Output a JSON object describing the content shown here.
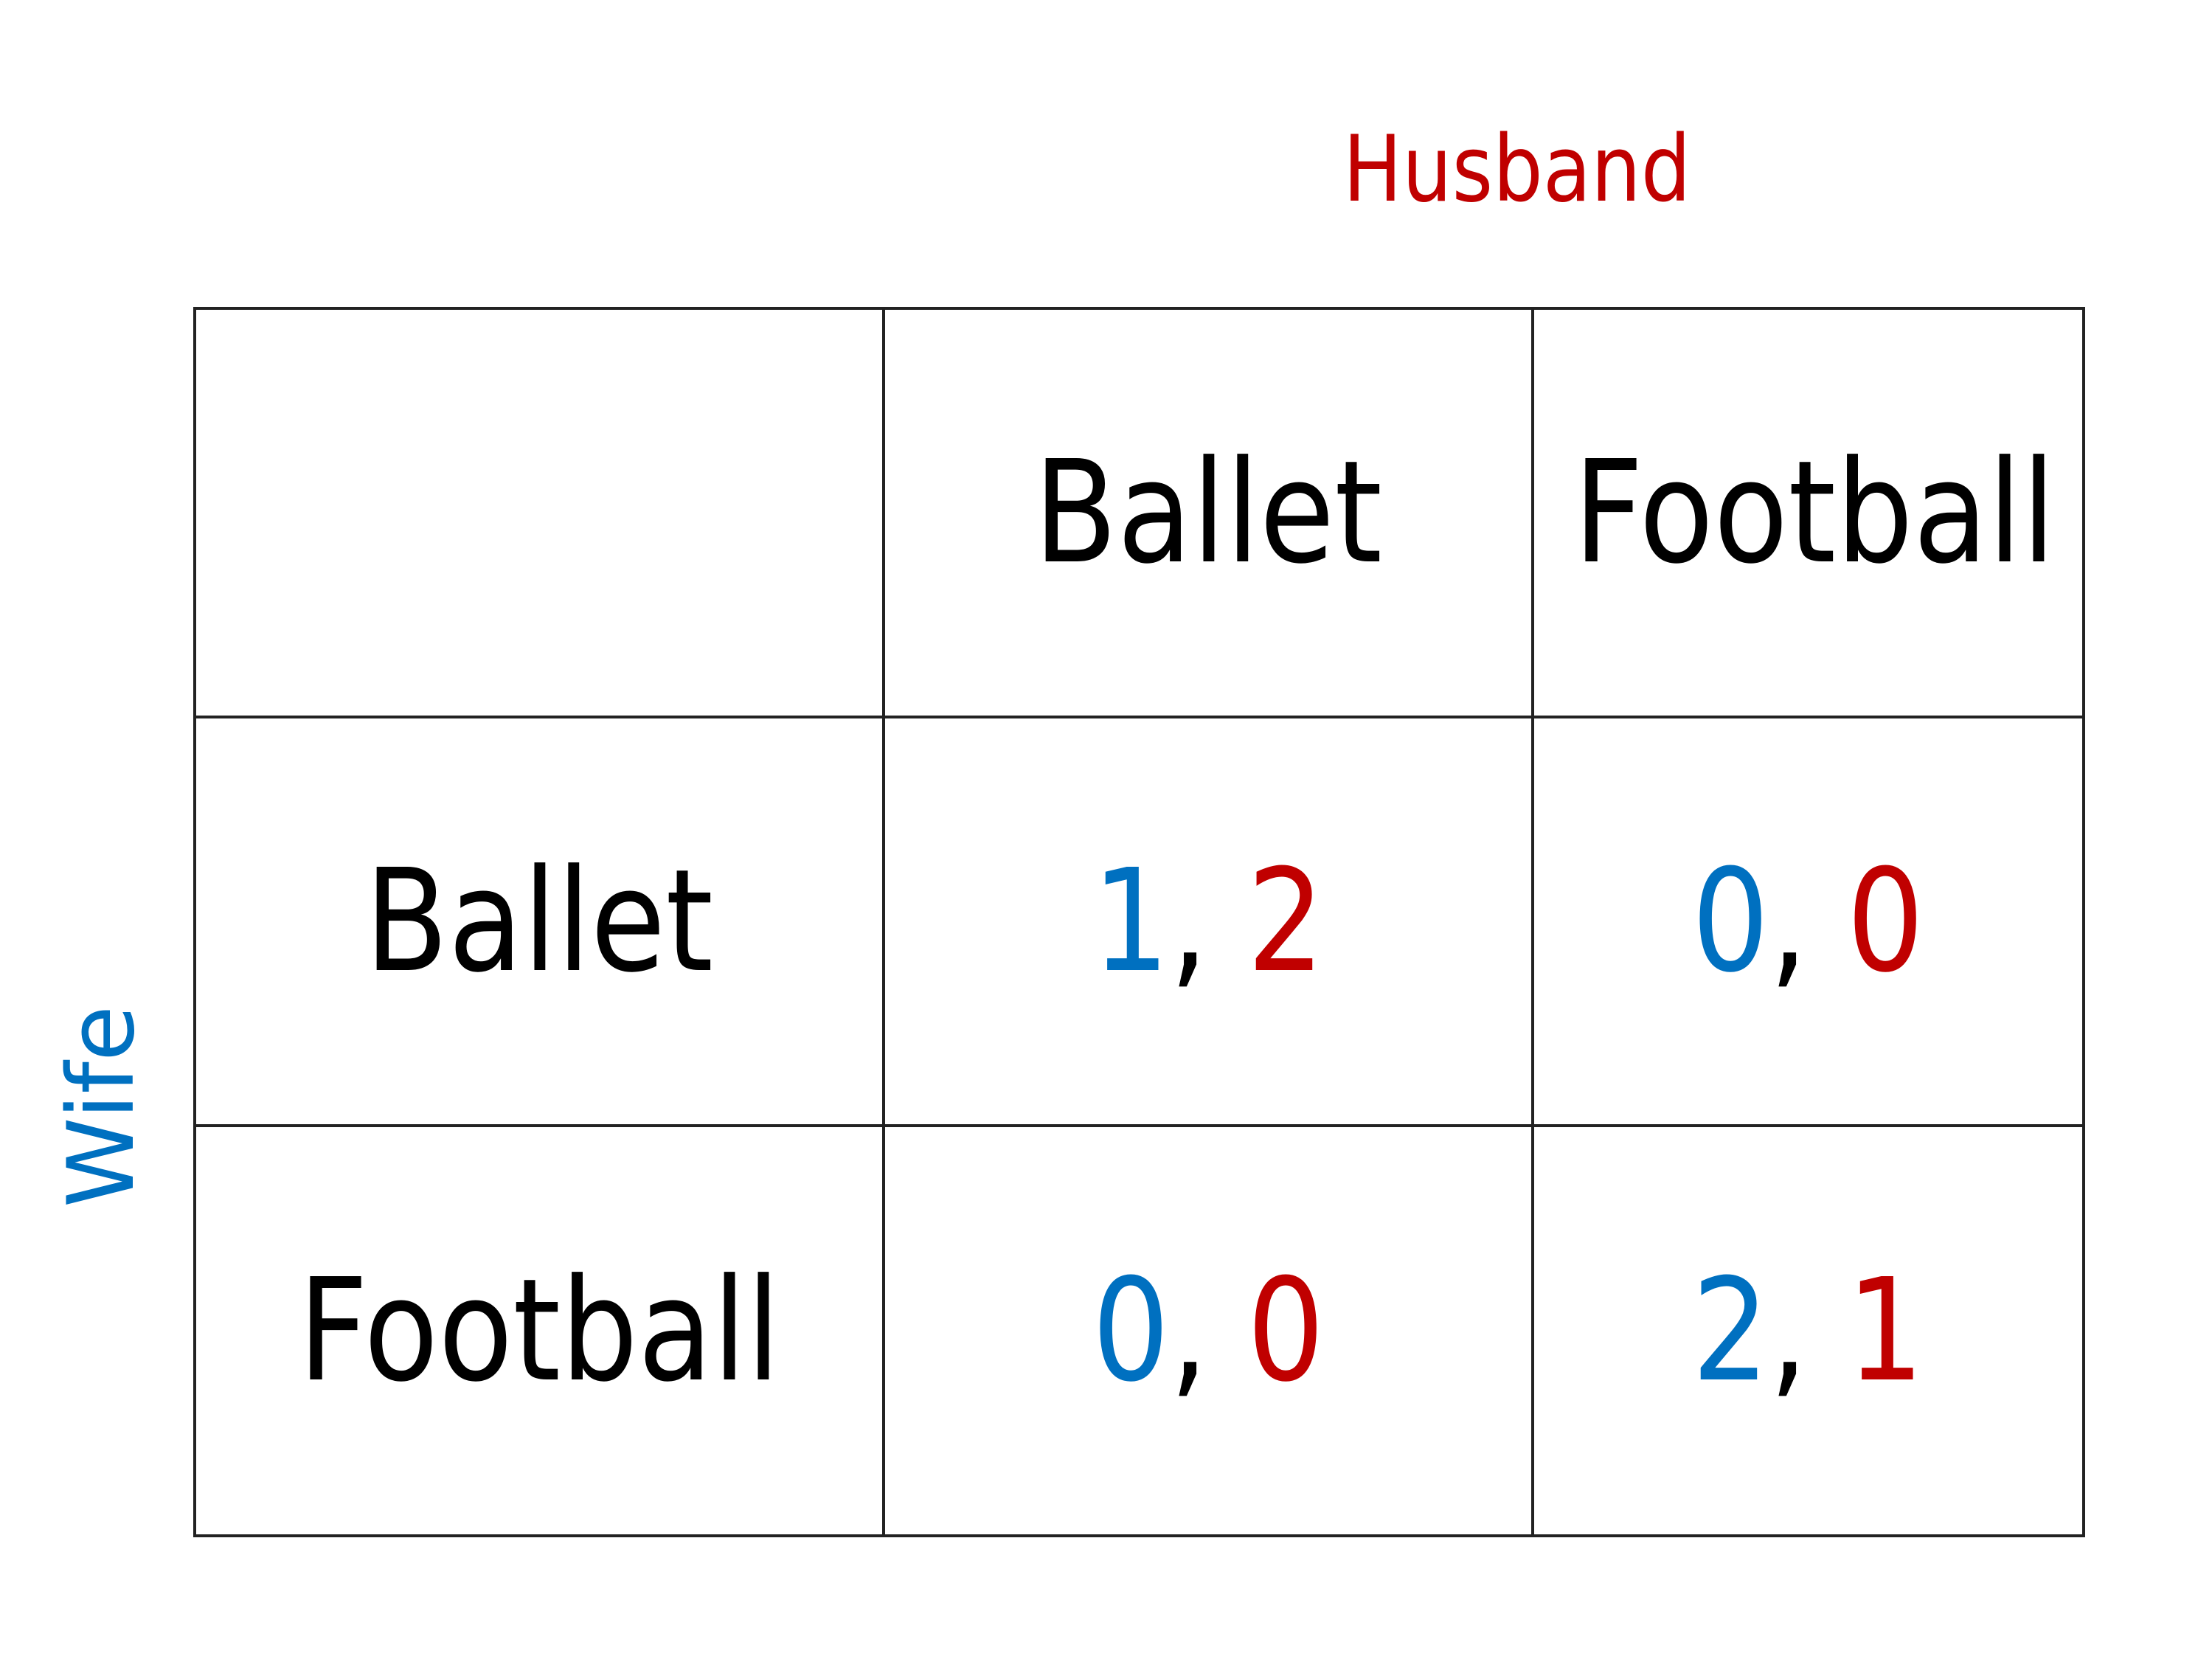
{
  "players": {
    "column": {
      "label": "Husband",
      "color": "#c00000"
    },
    "row": {
      "label": "Wife",
      "color": "#0070c0"
    }
  },
  "columns": [
    "Ballet",
    "Football"
  ],
  "rows": [
    {
      "label": "Ballet",
      "payoffs": [
        {
          "wife": "1",
          "husband": "2"
        },
        {
          "wife": "0",
          "husband": "0"
        }
      ]
    },
    {
      "label": "Football",
      "payoffs": [
        {
          "wife": "0",
          "husband": "0"
        },
        {
          "wife": "2",
          "husband": "1"
        }
      ]
    }
  ],
  "separator": ","
}
